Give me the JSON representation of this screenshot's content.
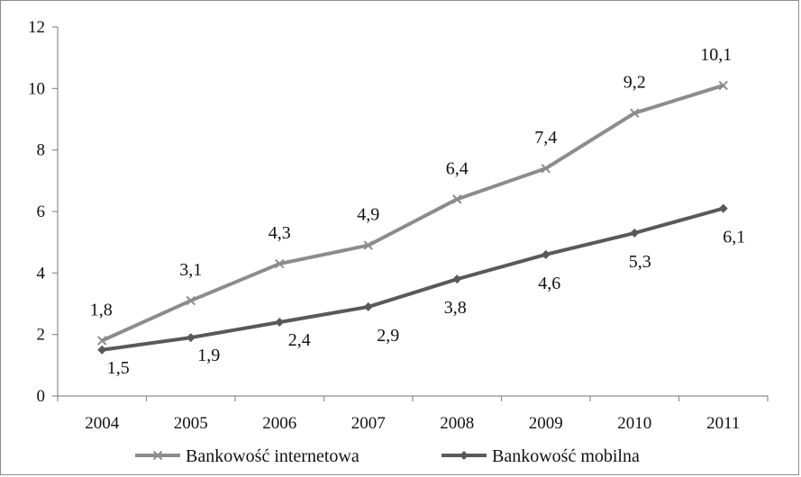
{
  "chart_data": {
    "type": "line",
    "title": "",
    "xlabel": "",
    "ylabel": "",
    "ylim": [
      0,
      12
    ],
    "yticks": [
      "0",
      "2",
      "4",
      "6",
      "8",
      "10",
      "12"
    ],
    "categories": [
      "2004",
      "2005",
      "2006",
      "2007",
      "2008",
      "2009",
      "2010",
      "2011"
    ],
    "series": [
      {
        "name": "Bankowość internetowa",
        "values": [
          1.8,
          3.1,
          4.3,
          4.9,
          6.4,
          7.4,
          9.2,
          10.1
        ],
        "labels": [
          "1,8",
          "3,1",
          "4,3",
          "4,9",
          "6,4",
          "7,4",
          "9,2",
          "10,1"
        ],
        "color": "#8c8c8c",
        "marker": "x"
      },
      {
        "name": "Bankowość mobilna",
        "values": [
          1.5,
          1.9,
          2.4,
          2.9,
          3.8,
          4.6,
          5.3,
          6.1
        ],
        "labels": [
          "1,5",
          "1,9",
          "2,4",
          "2,9",
          "3,8",
          "4,6",
          "5,3",
          "6,1"
        ],
        "color": "#595959",
        "marker": "diamond"
      }
    ],
    "grid": false,
    "legend_position": "bottom"
  }
}
